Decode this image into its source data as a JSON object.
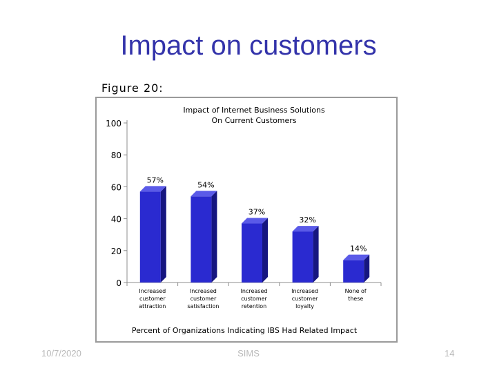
{
  "slide": {
    "title": "Impact on customers",
    "figure_label": "Figure 20:",
    "footer_date": "10/7/2020",
    "footer_center": "SIMS",
    "page_number": "14"
  },
  "chart_data": {
    "type": "bar",
    "title": "Impact of Internet Business Solutions On Current Customers",
    "title_lines": [
      "Impact of Internet Business Solutions",
      "On Current Customers"
    ],
    "xlabel": "Percent of Organizations Indicating IBS Had Related Impact",
    "ylabel": "",
    "ylim": [
      0,
      100
    ],
    "yticks": [
      0,
      20,
      40,
      60,
      80,
      100
    ],
    "categories": [
      "Increased customer attraction",
      "Increased customer satisfaction",
      "Increased customer retention",
      "Increased customer loyalty",
      "None of these"
    ],
    "category_lines": [
      [
        "Increased",
        "customer",
        "attraction"
      ],
      [
        "Increased",
        "customer",
        "satisfaction"
      ],
      [
        "Increased",
        "customer",
        "retention"
      ],
      [
        "Increased",
        "customer",
        "loyalty"
      ],
      [
        "None of",
        "these"
      ]
    ],
    "values": [
      57,
      54,
      37,
      32,
      14
    ],
    "data_labels": [
      "57%",
      "54%",
      "37%",
      "32%",
      "14%"
    ],
    "grid": false,
    "legend": "none",
    "colors": {
      "bar_front": "#2a2ad0",
      "bar_top": "#5a5ae8",
      "bar_side": "#161680",
      "axis": "#8c8c8c"
    }
  }
}
